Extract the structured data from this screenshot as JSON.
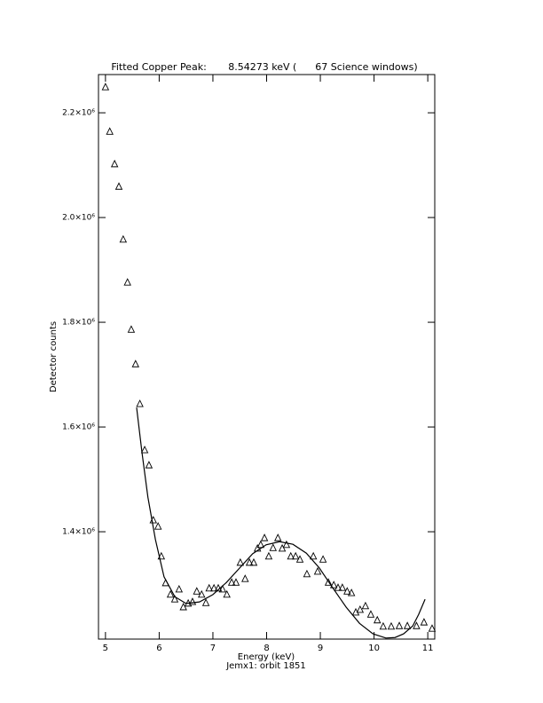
{
  "chart_data": {
    "type": "scatter",
    "title": "Fitted Copper Peak:       8.54273 keV (      67 Science windows)",
    "x_label": "Energy (keV)",
    "subtitle": "Jemx1: orbit 1851",
    "y_label": "Detector counts",
    "xlim": [
      4.87,
      11.13
    ],
    "ylim": [
      1195000,
      2273000
    ],
    "xticks": [
      5,
      6,
      7,
      8,
      9,
      10,
      11
    ],
    "yticks": [
      {
        "value": 1400000,
        "label": "1.4×10⁶"
      },
      {
        "value": 1600000,
        "label": "1.6×10⁶"
      },
      {
        "value": 1800000,
        "label": "1.8×10⁶"
      },
      {
        "value": 2000000,
        "label": "2.0×10⁶"
      },
      {
        "value": 2200000,
        "label": "2.2×10⁶"
      }
    ],
    "series": [
      {
        "marker": "triangle",
        "color": "#000000",
        "x": [
          5.0,
          5.08,
          5.17,
          5.25,
          5.33,
          5.41,
          5.48,
          5.56,
          5.64,
          5.73,
          5.81,
          5.89,
          5.98,
          6.04,
          6.12,
          6.21,
          6.29,
          6.37,
          6.45,
          6.54,
          6.62,
          6.7,
          6.79,
          6.87,
          6.93,
          7.02,
          7.1,
          7.18,
          7.26,
          7.35,
          7.43,
          7.51,
          7.6,
          7.68,
          7.76,
          7.83,
          7.89,
          7.96,
          8.04,
          8.12,
          8.21,
          8.29,
          8.37,
          8.45,
          8.54,
          8.62,
          8.75,
          8.87,
          8.95,
          9.05,
          9.15,
          9.25,
          9.33,
          9.41,
          9.5,
          9.58,
          9.66,
          9.74,
          9.84,
          9.94,
          10.06,
          10.17,
          10.32,
          10.47,
          10.62,
          10.79,
          10.93,
          11.08
        ],
        "values": [
          2249000,
          2164000,
          2102000,
          2059000,
          1958000,
          1876000,
          1786000,
          1720000,
          1644000,
          1556000,
          1527000,
          1422000,
          1410000,
          1353000,
          1302000,
          1280000,
          1271000,
          1290000,
          1256000,
          1263000,
          1266000,
          1286000,
          1280000,
          1264000,
          1292000,
          1292000,
          1292000,
          1290000,
          1280000,
          1303000,
          1303000,
          1341000,
          1310000,
          1341000,
          1341000,
          1368000,
          1375000,
          1388000,
          1353000,
          1369000,
          1388000,
          1368000,
          1375000,
          1353000,
          1353000,
          1347000,
          1319000,
          1353000,
          1324000,
          1347000,
          1303000,
          1298000,
          1293000,
          1293000,
          1286000,
          1283000,
          1246000,
          1251000,
          1258000,
          1242000,
          1231000,
          1219000,
          1219000,
          1220000,
          1220000,
          1220000,
          1227000,
          1215000
        ]
      },
      {
        "marker": "line",
        "color": "#000000",
        "x": [
          5.58,
          5.68,
          5.79,
          5.93,
          6.09,
          6.29,
          6.5,
          6.75,
          7.0,
          7.25,
          7.5,
          7.74,
          7.99,
          8.24,
          8.49,
          8.74,
          8.98,
          9.23,
          9.48,
          9.73,
          9.98,
          10.22,
          10.39,
          10.55,
          10.72,
          10.83,
          10.95
        ],
        "values": [
          1637000,
          1551000,
          1466000,
          1385000,
          1314000,
          1276000,
          1263000,
          1266000,
          1280000,
          1303000,
          1331000,
          1358000,
          1375000,
          1381000,
          1376000,
          1359000,
          1331000,
          1293000,
          1256000,
          1225000,
          1205000,
          1197000,
          1198000,
          1205000,
          1220000,
          1242000,
          1271000
        ]
      }
    ]
  }
}
